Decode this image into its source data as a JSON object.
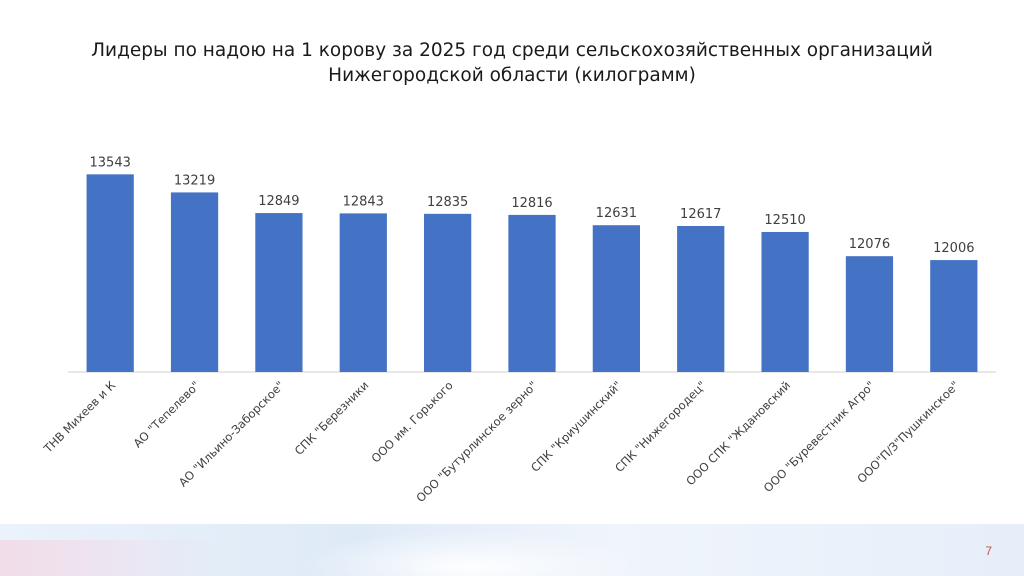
{
  "slide": {
    "title": "Лидеры по надою на 1 корову за 2025 год среди сельскохозяйственных организаций Нижегородской области (килограмм)",
    "page_number": "7"
  },
  "chart_data": {
    "type": "bar",
    "title": "Лидеры по надою на 1 корову за 2025 год среди сельскохозяйственных организаций Нижегородской области (килограмм)",
    "categories": [
      "ТНВ Михеев и К",
      "АО \"Тепелево\"",
      "АО \"Ильино-Заборское\"",
      "СПК \"Березники",
      "ООО им. Горького",
      "ООО \"Бутурлинское зерно\"",
      "СПК \"Криушинский\"",
      "СПК \"Нижегородец\"",
      "ООО СПК \"Ждановский",
      "ООО \"Буревестник Агро\"",
      "ООО\"П/З\"Пушкинское\""
    ],
    "values": [
      13543,
      13219,
      12849,
      12843,
      12835,
      12816,
      12631,
      12617,
      12510,
      12076,
      12006
    ],
    "data_labels": true,
    "bar_color": "#4472c4",
    "grid": false,
    "legend": "none",
    "ylim": [
      10000,
      13800
    ]
  }
}
